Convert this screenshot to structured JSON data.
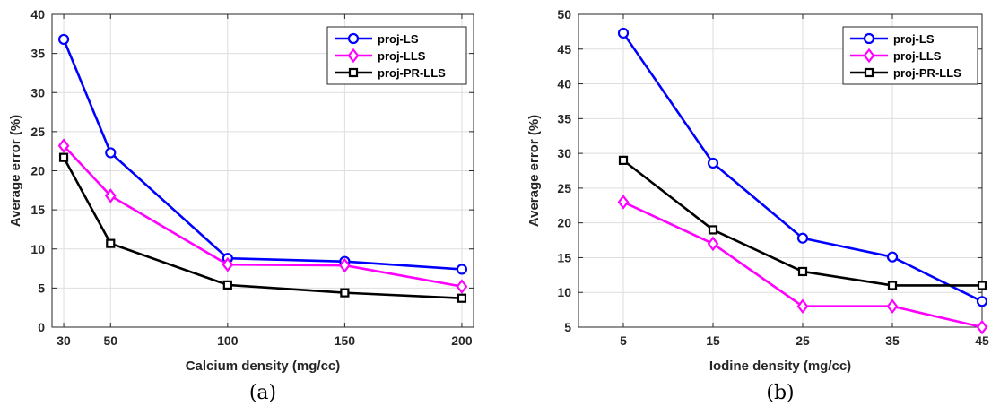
{
  "chart_data": [
    {
      "type": "line",
      "caption": "(a)",
      "xlabel": "Calcium density (mg/cc)",
      "ylabel": "Average error (%)",
      "x": [
        30,
        50,
        100,
        150,
        200
      ],
      "xticks": [
        "30",
        "50",
        "100",
        "150",
        "200"
      ],
      "yticks": [
        "0",
        "5",
        "10",
        "15",
        "20",
        "25",
        "30",
        "35",
        "40"
      ],
      "xlim": [
        25,
        205
      ],
      "ylim": [
        0,
        40
      ],
      "grid": true,
      "legend_position": "top-right",
      "series": [
        {
          "name": "proj-LS",
          "color": "#0000ff",
          "marker": "circle",
          "values": [
            36.8,
            22.3,
            8.8,
            8.4,
            7.4
          ]
        },
        {
          "name": "proj-LLS",
          "color": "#ff00ff",
          "marker": "diamond",
          "values": [
            23.2,
            16.8,
            8.0,
            7.9,
            5.2
          ]
        },
        {
          "name": "proj-PR-LLS",
          "color": "#000000",
          "marker": "square",
          "values": [
            21.7,
            10.7,
            5.4,
            4.4,
            3.7
          ]
        }
      ]
    },
    {
      "type": "line",
      "caption": "(b)",
      "xlabel": "Iodine density (mg/cc)",
      "ylabel": "Average error (%)",
      "x": [
        5,
        15,
        25,
        35,
        45
      ],
      "xticks": [
        "5",
        "15",
        "25",
        "35",
        "45"
      ],
      "yticks": [
        "5",
        "10",
        "15",
        "20",
        "25",
        "30",
        "35",
        "40",
        "45",
        "50"
      ],
      "xlim": [
        0,
        45
      ],
      "ylim": [
        5,
        50
      ],
      "grid": true,
      "legend_position": "top-right",
      "series": [
        {
          "name": "proj-LS",
          "color": "#0000ff",
          "marker": "circle",
          "values": [
            47.3,
            28.6,
            17.8,
            15.1,
            8.7
          ]
        },
        {
          "name": "proj-LLS",
          "color": "#ff00ff",
          "marker": "diamond",
          "values": [
            23.0,
            17.0,
            8.0,
            8.0,
            5.0
          ]
        },
        {
          "name": "proj-PR-LLS",
          "color": "#000000",
          "marker": "square",
          "values": [
            29.0,
            19.0,
            13.0,
            11.0,
            11.0
          ]
        }
      ]
    }
  ]
}
